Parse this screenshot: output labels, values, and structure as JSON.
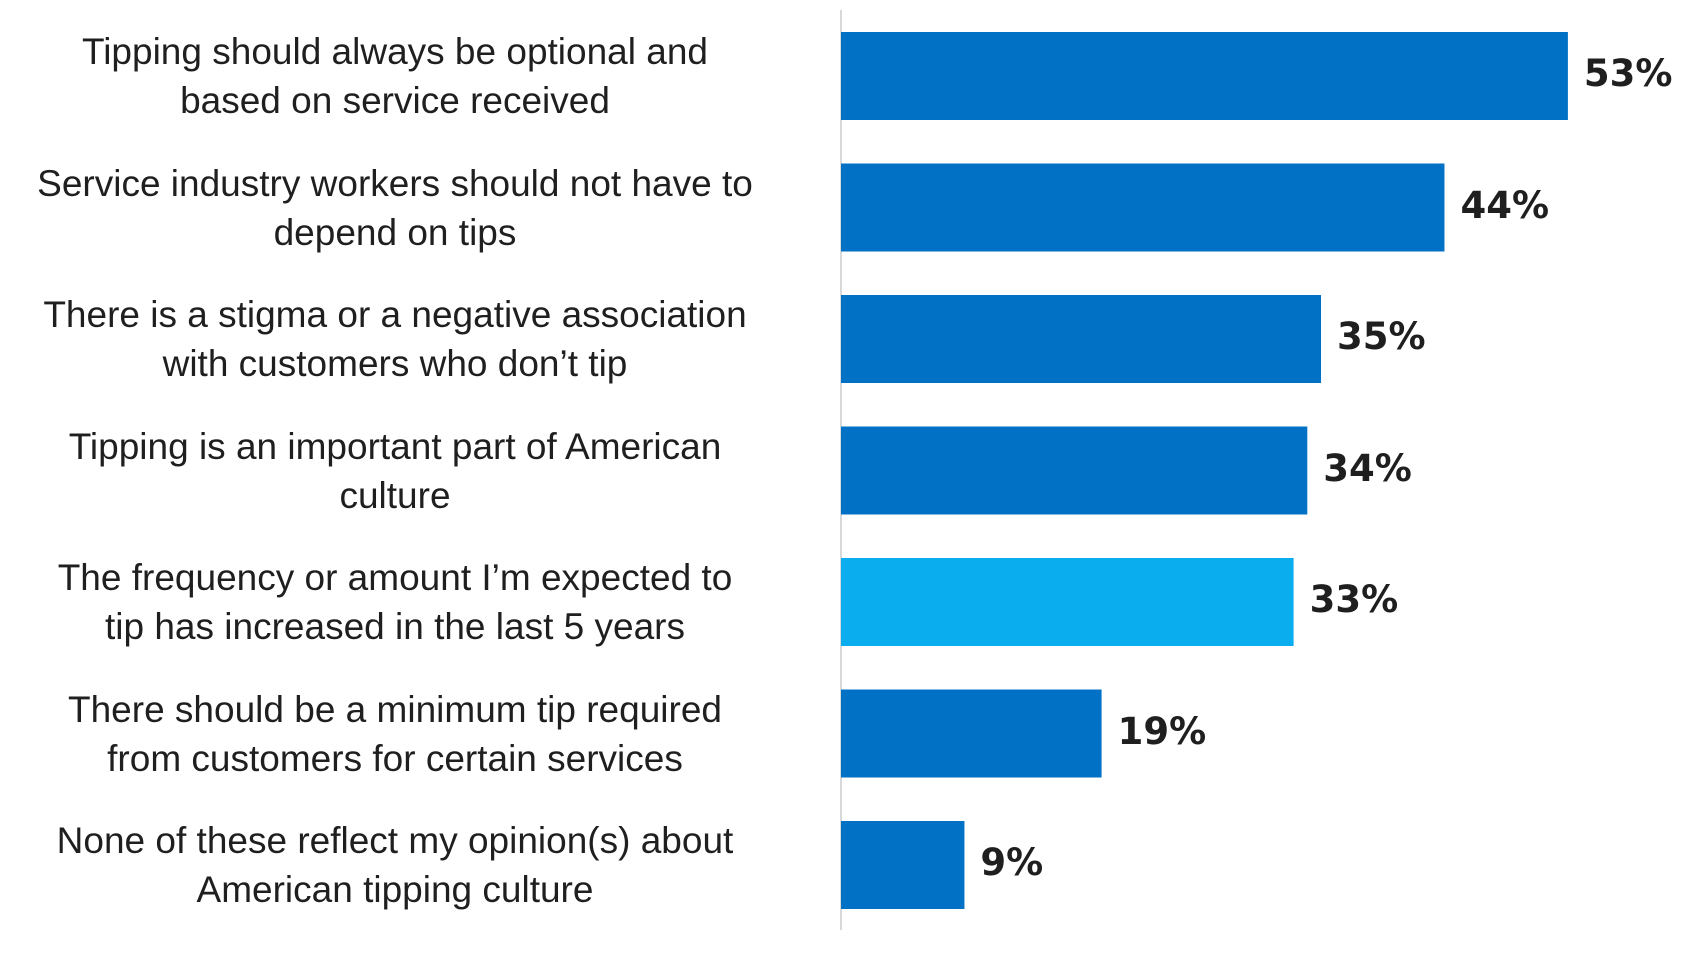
{
  "chart_data": {
    "type": "bar",
    "orientation": "horizontal",
    "categories": [
      "Tipping should always be optional and\nbased on service received",
      "Service industry workers should not have to\ndepend on tips",
      "There is a stigma or a negative association\nwith customers who don’t tip",
      "Tipping is an important part of American\nculture",
      "The frequency or amount I’m expected to\ntip has increased in the last 5 years",
      "There should be a minimum tip required\nfrom customers for certain services",
      "None of these reflect my opinion(s) about\nAmerican tipping culture"
    ],
    "values": [
      53,
      44,
      35,
      34,
      33,
      19,
      9
    ],
    "value_labels": [
      "53%",
      "44%",
      "35%",
      "34%",
      "33%",
      "19%",
      "9%"
    ],
    "bar_colors": [
      "#0071c5",
      "#0071c5",
      "#0071c5",
      "#0071c5",
      "#0aaeef",
      "#0071c5",
      "#0071c5"
    ],
    "title": "",
    "xlabel": "",
    "ylabel": "",
    "xlim": [
      0,
      60
    ],
    "grid": false,
    "legend": "none",
    "axis_line_color": "#d9d9d9"
  }
}
